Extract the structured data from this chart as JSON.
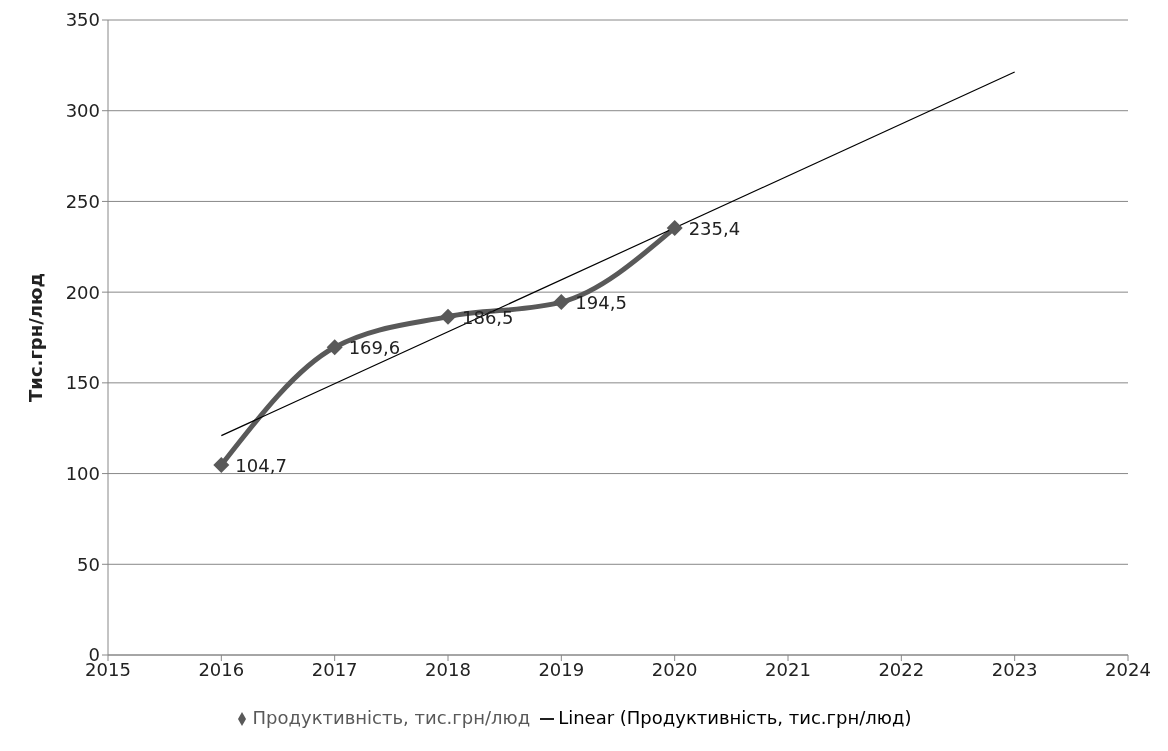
{
  "chart_data": {
    "type": "line",
    "ylabel": "Тис.грн/люд",
    "xlim": [
      2015,
      2024
    ],
    "xticks": [
      2015,
      2016,
      2017,
      2018,
      2019,
      2020,
      2021,
      2022,
      2023,
      2024
    ],
    "ylim": [
      0,
      350
    ],
    "yticks": [
      0,
      50,
      100,
      150,
      200,
      250,
      300,
      350
    ],
    "grid": "y",
    "legend": "bottom",
    "line_style": "solid",
    "series": [
      {
        "name": "Продуктивність, тис.грн/люд",
        "color": "#595959",
        "marker": "diamond",
        "x": [
          2016,
          2017,
          2018,
          2019,
          2020
        ],
        "values": [
          104.7,
          169.6,
          186.5,
          194.5,
          235.4
        ],
        "value_labels": [
          "104,7",
          "169,6",
          "186,5",
          "194,5",
          "235,4"
        ]
      },
      {
        "name": "Linear (Продуктивність, тис.грн/люд)",
        "color": "#000000",
        "marker": "none",
        "x": [
          2016,
          2023
        ],
        "values": [
          120.9,
          321.3
        ]
      }
    ]
  }
}
